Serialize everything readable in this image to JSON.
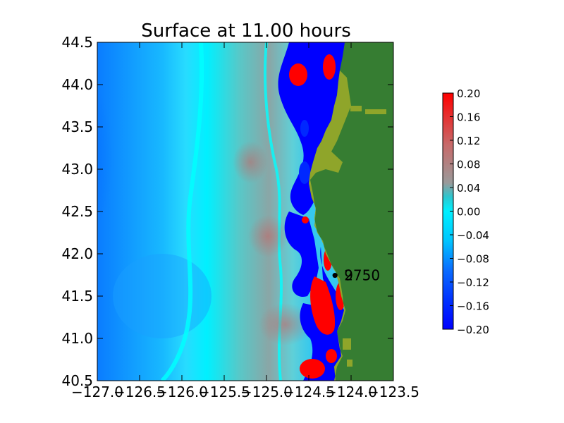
{
  "chart_data": {
    "type": "heatmap",
    "title": "Surface at 11.00 hours",
    "xlabel": "",
    "ylabel": "",
    "xlim": [
      -127.0,
      -123.5
    ],
    "ylim": [
      40.5,
      44.5
    ],
    "x_ticks": [
      "−127.0",
      "−126.5",
      "−126.0",
      "−125.5",
      "−125.0",
      "−124.5",
      "−124.0",
      "−123.5"
    ],
    "y_ticks": [
      "40.5",
      "41.0",
      "41.5",
      "42.0",
      "42.5",
      "43.0",
      "43.5",
      "44.0",
      "44.5"
    ],
    "colorbar": {
      "range": [
        -0.2,
        0.2
      ],
      "ticks": [
        "0.20",
        "0.16",
        "0.12",
        "0.08",
        "0.04",
        "0.00",
        "−0.04",
        "−0.08",
        "−0.12",
        "−0.16",
        "−0.20"
      ],
      "colors": [
        "#0000ff",
        "#0a6cff",
        "#00e0ff",
        "#2cc7cf",
        "#9a9a9a",
        "#c76a6a",
        "#ff0000"
      ]
    },
    "land_color": "#367d32",
    "shore_color": "#8fa52a",
    "gauges": [
      {
        "label": "2",
        "lon": -124.19,
        "lat": 41.745
      },
      {
        "label": "9750",
        "lon": -124.19,
        "lat": 41.745
      }
    ]
  }
}
